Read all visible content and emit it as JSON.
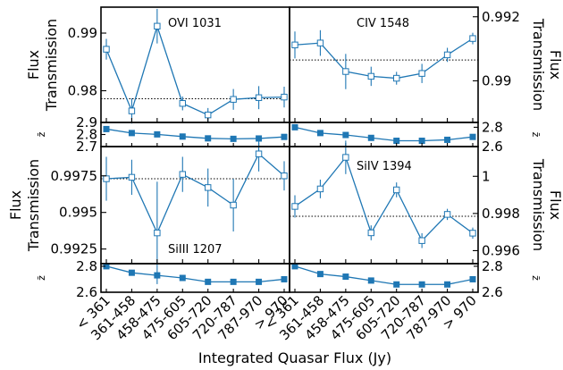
{
  "chart_data": {
    "type": "line",
    "xlabel": "Integrated Quasar Flux (Jy)",
    "categories": [
      "< 361",
      "361-458",
      "458-475",
      "475-605",
      "605-720",
      "720-787",
      "787-970",
      "> 970"
    ],
    "color": "#1f77b4",
    "z_ylabel": "z̄",
    "panels": [
      {
        "label": "OVI 1031",
        "ylabel": "Flux Transmission",
        "ylabel_side": "left",
        "ylim": [
          0.9745,
          0.9945
        ],
        "yticks": [
          0.98,
          0.99
        ],
        "reference": 0.9786,
        "values": [
          0.9872,
          0.9765,
          0.9912,
          0.9778,
          0.9758,
          0.9785,
          0.9788,
          0.9789
        ],
        "errors": [
          0.0018,
          0.0022,
          0.003,
          0.0012,
          0.0012,
          0.0018,
          0.002,
          0.0018
        ],
        "z_ylim": [
          2.7,
          2.9
        ],
        "z_yticks": [
          2.7,
          2.8,
          2.9
        ],
        "z_values": [
          2.845,
          2.812,
          2.801,
          2.783,
          2.768,
          2.764,
          2.767,
          2.78
        ]
      },
      {
        "label": "CIV 1548",
        "ylabel": "Flux Transmission",
        "ylabel_side": "right",
        "ylim": [
          0.9887,
          0.9923
        ],
        "yticks": [
          0.99,
          0.992
        ],
        "reference": 0.99065,
        "values": [
          0.99112,
          0.99118,
          0.99029,
          0.99014,
          0.99008,
          0.99023,
          0.99081,
          0.99132
        ],
        "errors": [
          0.00042,
          0.0004,
          0.00055,
          0.0003,
          0.0002,
          0.0003,
          0.00022,
          0.00018
        ],
        "z_ylim": [
          2.6,
          2.85
        ],
        "z_yticks": [
          2.6,
          2.8
        ],
        "z_values": [
          2.8,
          2.74,
          2.72,
          2.69,
          2.66,
          2.66,
          2.67,
          2.7
        ]
      },
      {
        "label": "SiIII 1207",
        "ylabel": "Flux Transmission",
        "ylabel_side": "left",
        "ylim": [
          0.9915,
          0.9995
        ],
        "yticks": [
          0.9925,
          0.995,
          0.9975
        ],
        "reference": 0.9973,
        "values": [
          0.9973,
          0.9974,
          0.9936,
          0.9976,
          0.9967,
          0.9955,
          0.999,
          0.9975
        ],
        "errors": [
          0.0015,
          0.0012,
          0.0035,
          0.0012,
          0.0013,
          0.0018,
          0.0012,
          0.001
        ],
        "z_ylim": [
          2.6,
          2.82
        ],
        "z_yticks": [
          2.6,
          2.8
        ],
        "z_values": [
          2.8,
          2.75,
          2.73,
          2.71,
          2.68,
          2.68,
          2.68,
          2.7
        ]
      },
      {
        "label": "SiIV 1394",
        "ylabel": "Flux Transmission",
        "ylabel_side": "right",
        "ylim": [
          0.9953,
          1.0016
        ],
        "yticks": [
          0.996,
          0.998,
          1.0
        ],
        "reference": 0.99785,
        "values": [
          0.99838,
          0.99932,
          1.00102,
          0.99696,
          0.99927,
          0.99654,
          0.99795,
          0.99694
        ],
        "errors": [
          0.0006,
          0.0005,
          0.0009,
          0.0004,
          0.0004,
          0.0004,
          0.0003,
          0.0003
        ],
        "z_ylim": [
          2.6,
          2.82
        ],
        "z_yticks": [
          2.6,
          2.8
        ],
        "z_values": [
          2.8,
          2.74,
          2.72,
          2.69,
          2.66,
          2.66,
          2.66,
          2.7
        ]
      }
    ]
  }
}
